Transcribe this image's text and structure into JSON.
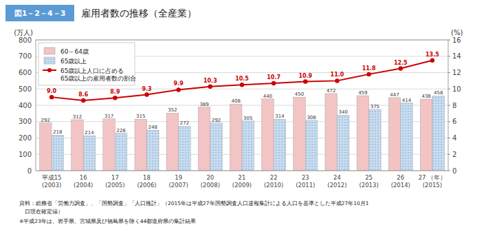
{
  "chart_data": {
    "type": "bar",
    "title": "雇用者数の推移（全産業）",
    "annotations": [
      "図1－2－4－3",
      "資料：総務省「労働力調査」、「国勢調査」「人口推計」（2015年は平成27年国勢調査人口速報集計による人口を基準とした平成27年10月1",
      "　日現在確定値）",
      "※平成23年は、岩手県、宮城県及び福島県を除く44都道府県の集計結果"
    ],
    "ylabel": "(万人)",
    "y2label": "(%)",
    "categories": [
      "平成15\n(2003)",
      "16\n(2004)",
      "17\n(2005)",
      "18\n(2006)",
      "19\n(2007)",
      "20\n(2008)",
      "21\n(2009)",
      "22\n(2010)",
      "23\n(2011)",
      "24\n(2012)",
      "25\n(2013)",
      "26\n(2014)",
      "27 （年）\n(2015)"
    ],
    "series": [
      {
        "name": "60～64歳",
        "color": "#f2c4c4",
        "values": [
          292,
          312,
          317,
          315,
          352,
          389,
          408,
          440,
          450,
          472,
          459,
          447,
          438
        ]
      },
      {
        "name": "65歳以上",
        "color": "#c8ddf0",
        "values": [
          218,
          214,
          228,
          248,
          272,
          292,
          305,
          314,
          308,
          340,
          375,
          414,
          458
        ]
      },
      {
        "name": "65歳以上人口に占める\n65歳以上の雇用者数の割合",
        "type": "line",
        "axis": "y2",
        "color": "#cc0000",
        "marker": "circle",
        "values": [
          9.0,
          8.6,
          8.9,
          9.3,
          9.9,
          10.3,
          10.5,
          10.7,
          10.9,
          11.0,
          11.8,
          12.5,
          13.5
        ],
        "value_labels": [
          "9.0",
          "8.6",
          "8.9",
          "9.3",
          "9.9",
          "10.3",
          "10.5",
          "10.7",
          "10.9",
          "11.0",
          "11.8",
          "12.5",
          "13.5"
        ]
      }
    ],
    "ylim": [
      0,
      800
    ],
    "yticks": [
      0,
      100,
      200,
      300,
      400,
      500,
      600,
      700,
      800
    ],
    "y2lim": [
      0,
      16
    ],
    "y2ticks": [
      0,
      2,
      4,
      6,
      8,
      10,
      12,
      14,
      16
    ],
    "grid": true,
    "legend": "upper left",
    "data_labels": true
  }
}
